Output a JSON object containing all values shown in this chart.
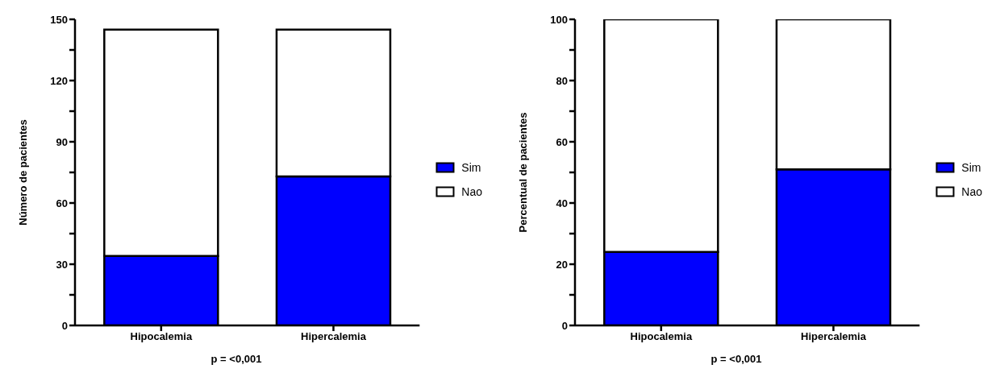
{
  "chart_data": [
    {
      "type": "bar",
      "ylabel": "Número de pacientes",
      "categories": [
        "Hipocalemia",
        "Hipercalemia"
      ],
      "stacked": true,
      "series": [
        {
          "name": "Sim",
          "color": "#0000ff",
          "values": [
            34,
            73
          ]
        },
        {
          "name": "Nao",
          "color": "#ffffff",
          "values": [
            111,
            72
          ]
        }
      ],
      "ylim": [
        0,
        150
      ],
      "yticks": [
        0,
        {
          "value": 15,
          "label": null
        },
        30,
        {
          "value": 45,
          "label": null
        },
        60,
        {
          "value": 75,
          "label": null
        },
        90,
        {
          "value": 105,
          "label": null
        },
        120,
        {
          "value": 135,
          "label": null
        },
        150
      ],
      "grid": false,
      "legend": "right",
      "annotations": [
        "p = <0,001"
      ]
    },
    {
      "type": "bar",
      "ylabel": "Percentual de pacientes",
      "categories": [
        "Hipocalemia",
        "Hipercalemia"
      ],
      "stacked": true,
      "series": [
        {
          "name": "Sim",
          "color": "#0000ff",
          "values": [
            24,
            51
          ]
        },
        {
          "name": "Nao",
          "color": "#ffffff",
          "values": [
            76,
            49
          ]
        }
      ],
      "ylim": [
        0,
        100
      ],
      "yticks": [
        0,
        {
          "value": 10,
          "label": null
        },
        20,
        {
          "value": 30,
          "label": null
        },
        40,
        {
          "value": 50,
          "label": null
        },
        60,
        {
          "value": 70,
          "label": null
        },
        80,
        {
          "value": 90,
          "label": null
        },
        100
      ],
      "grid": false,
      "legend": "right",
      "annotations": [
        "p = <0,001"
      ]
    }
  ]
}
